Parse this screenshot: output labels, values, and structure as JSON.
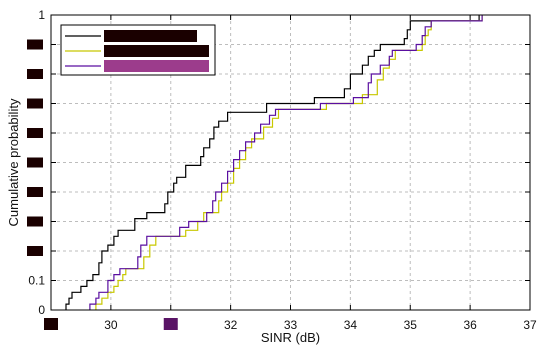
{
  "chart_data": {
    "type": "line",
    "step": true,
    "xlabel": "SINR (dB)",
    "ylabel": "Cumulative probability",
    "xlim": [
      29,
      37
    ],
    "ylim": [
      0,
      1
    ],
    "grid": true,
    "legend_position": "top-left",
    "x_ticks": [
      {
        "value": 29,
        "label": "",
        "redacted_color": "#1a0000"
      },
      {
        "value": 30,
        "label": "30"
      },
      {
        "value": 31,
        "label": "",
        "redacted_color": "#5a1466"
      },
      {
        "value": 32,
        "label": "32"
      },
      {
        "value": 33,
        "label": "33"
      },
      {
        "value": 34,
        "label": "34"
      },
      {
        "value": 35,
        "label": "35"
      },
      {
        "value": 36,
        "label": "36"
      },
      {
        "value": 37,
        "label": "37"
      }
    ],
    "y_ticks": [
      {
        "value": 0,
        "label": "0"
      },
      {
        "value": 0.1,
        "label": "0.1"
      },
      {
        "value": 0.2,
        "label": "",
        "redacted_color": "#1a0000"
      },
      {
        "value": 0.3,
        "label": "",
        "redacted_color": "#1a0000"
      },
      {
        "value": 0.4,
        "label": "",
        "redacted_color": "#1a0000"
      },
      {
        "value": 0.5,
        "label": "",
        "redacted_color": "#1a0000"
      },
      {
        "value": 0.6,
        "label": "",
        "redacted_color": "#1a0000"
      },
      {
        "value": 0.7,
        "label": "",
        "redacted_color": "#1a0000"
      },
      {
        "value": 0.8,
        "label": "",
        "redacted_color": "#1a0000"
      },
      {
        "value": 0.9,
        "label": "",
        "redacted_color": "#1a0000"
      },
      {
        "value": 1,
        "label": "1"
      }
    ],
    "series": [
      {
        "color": "#000000",
        "legend_label_redacted": true,
        "legend_fill": "#1a0000",
        "points": [
          [
            29.25,
            0.0
          ],
          [
            29.25,
            0.02
          ],
          [
            29.3,
            0.02
          ],
          [
            29.3,
            0.04
          ],
          [
            29.35,
            0.04
          ],
          [
            29.35,
            0.06
          ],
          [
            29.5,
            0.06
          ],
          [
            29.5,
            0.08
          ],
          [
            29.6,
            0.08
          ],
          [
            29.6,
            0.1
          ],
          [
            29.7,
            0.1
          ],
          [
            29.7,
            0.12
          ],
          [
            29.8,
            0.12
          ],
          [
            29.8,
            0.16
          ],
          [
            29.85,
            0.16
          ],
          [
            29.85,
            0.2
          ],
          [
            29.95,
            0.2
          ],
          [
            29.95,
            0.22
          ],
          [
            30.05,
            0.22
          ],
          [
            30.05,
            0.25
          ],
          [
            30.12,
            0.25
          ],
          [
            30.12,
            0.27
          ],
          [
            30.4,
            0.27
          ],
          [
            30.4,
            0.31
          ],
          [
            30.6,
            0.31
          ],
          [
            30.6,
            0.33
          ],
          [
            30.9,
            0.33
          ],
          [
            30.9,
            0.36
          ],
          [
            30.95,
            0.36
          ],
          [
            30.95,
            0.4
          ],
          [
            31.05,
            0.4
          ],
          [
            31.05,
            0.43
          ],
          [
            31.1,
            0.43
          ],
          [
            31.1,
            0.45
          ],
          [
            31.25,
            0.45
          ],
          [
            31.25,
            0.49
          ],
          [
            31.5,
            0.49
          ],
          [
            31.5,
            0.52
          ],
          [
            31.55,
            0.52
          ],
          [
            31.55,
            0.55
          ],
          [
            31.65,
            0.55
          ],
          [
            31.65,
            0.58
          ],
          [
            31.72,
            0.58
          ],
          [
            31.72,
            0.62
          ],
          [
            31.8,
            0.62
          ],
          [
            31.8,
            0.64
          ],
          [
            31.95,
            0.64
          ],
          [
            31.95,
            0.67
          ],
          [
            32.6,
            0.67
          ],
          [
            32.6,
            0.7
          ],
          [
            33.4,
            0.7
          ],
          [
            33.4,
            0.72
          ],
          [
            33.9,
            0.72
          ],
          [
            33.9,
            0.75
          ],
          [
            34.0,
            0.75
          ],
          [
            34.0,
            0.8
          ],
          [
            34.2,
            0.8
          ],
          [
            34.2,
            0.83
          ],
          [
            34.3,
            0.83
          ],
          [
            34.3,
            0.86
          ],
          [
            34.4,
            0.86
          ],
          [
            34.4,
            0.88
          ],
          [
            34.5,
            0.88
          ],
          [
            34.5,
            0.9
          ],
          [
            34.9,
            0.9
          ],
          [
            34.9,
            0.92
          ],
          [
            34.95,
            0.92
          ],
          [
            34.95,
            0.95
          ],
          [
            35.0,
            0.95
          ],
          [
            35.0,
            0.98
          ],
          [
            36.15,
            0.98
          ],
          [
            36.15,
            1.0
          ]
        ]
      },
      {
        "color": "#c8c800",
        "legend_label_redacted": true,
        "legend_fill": "#1a0000",
        "points": [
          [
            29.75,
            0.0
          ],
          [
            29.75,
            0.02
          ],
          [
            29.85,
            0.02
          ],
          [
            29.85,
            0.04
          ],
          [
            29.95,
            0.04
          ],
          [
            29.95,
            0.06
          ],
          [
            30.05,
            0.06
          ],
          [
            30.05,
            0.08
          ],
          [
            30.12,
            0.08
          ],
          [
            30.12,
            0.1
          ],
          [
            30.2,
            0.1
          ],
          [
            30.2,
            0.12
          ],
          [
            30.25,
            0.12
          ],
          [
            30.25,
            0.14
          ],
          [
            30.55,
            0.14
          ],
          [
            30.55,
            0.18
          ],
          [
            30.65,
            0.18
          ],
          [
            30.65,
            0.22
          ],
          [
            30.75,
            0.22
          ],
          [
            30.75,
            0.25
          ],
          [
            31.25,
            0.25
          ],
          [
            31.25,
            0.27
          ],
          [
            31.45,
            0.27
          ],
          [
            31.45,
            0.3
          ],
          [
            31.55,
            0.3
          ],
          [
            31.55,
            0.33
          ],
          [
            31.8,
            0.33
          ],
          [
            31.8,
            0.37
          ],
          [
            31.85,
            0.37
          ],
          [
            31.85,
            0.4
          ],
          [
            31.95,
            0.4
          ],
          [
            31.95,
            0.43
          ],
          [
            32.05,
            0.43
          ],
          [
            32.05,
            0.48
          ],
          [
            32.15,
            0.48
          ],
          [
            32.15,
            0.51
          ],
          [
            32.25,
            0.51
          ],
          [
            32.25,
            0.55
          ],
          [
            32.35,
            0.55
          ],
          [
            32.35,
            0.58
          ],
          [
            32.55,
            0.58
          ],
          [
            32.55,
            0.62
          ],
          [
            32.7,
            0.62
          ],
          [
            32.7,
            0.65
          ],
          [
            32.8,
            0.65
          ],
          [
            32.8,
            0.68
          ],
          [
            33.6,
            0.68
          ],
          [
            33.6,
            0.7
          ],
          [
            34.2,
            0.7
          ],
          [
            34.2,
            0.73
          ],
          [
            34.45,
            0.73
          ],
          [
            34.45,
            0.78
          ],
          [
            34.55,
            0.78
          ],
          [
            34.55,
            0.82
          ],
          [
            34.65,
            0.82
          ],
          [
            34.65,
            0.85
          ],
          [
            34.75,
            0.85
          ],
          [
            34.75,
            0.88
          ],
          [
            35.2,
            0.88
          ],
          [
            35.2,
            0.9
          ],
          [
            35.25,
            0.9
          ],
          [
            35.25,
            0.93
          ],
          [
            35.3,
            0.93
          ],
          [
            35.3,
            0.95
          ],
          [
            35.35,
            0.95
          ],
          [
            35.35,
            0.98
          ],
          [
            36.2,
            0.98
          ],
          [
            36.2,
            1.0
          ]
        ]
      },
      {
        "color": "#5a0fa0",
        "legend_label_redacted": true,
        "legend_fill": "#9c3c8c",
        "points": [
          [
            29.65,
            0.0
          ],
          [
            29.65,
            0.02
          ],
          [
            29.75,
            0.02
          ],
          [
            29.75,
            0.04
          ],
          [
            29.8,
            0.04
          ],
          [
            29.8,
            0.06
          ],
          [
            29.95,
            0.06
          ],
          [
            29.95,
            0.1
          ],
          [
            30.05,
            0.1
          ],
          [
            30.05,
            0.12
          ],
          [
            30.15,
            0.12
          ],
          [
            30.15,
            0.14
          ],
          [
            30.45,
            0.14
          ],
          [
            30.45,
            0.18
          ],
          [
            30.5,
            0.18
          ],
          [
            30.5,
            0.22
          ],
          [
            30.6,
            0.22
          ],
          [
            30.6,
            0.25
          ],
          [
            31.15,
            0.25
          ],
          [
            31.15,
            0.28
          ],
          [
            31.3,
            0.28
          ],
          [
            31.3,
            0.3
          ],
          [
            31.6,
            0.3
          ],
          [
            31.6,
            0.33
          ],
          [
            31.7,
            0.33
          ],
          [
            31.7,
            0.37
          ],
          [
            31.75,
            0.37
          ],
          [
            31.75,
            0.4
          ],
          [
            31.85,
            0.4
          ],
          [
            31.85,
            0.43
          ],
          [
            31.95,
            0.43
          ],
          [
            31.95,
            0.47
          ],
          [
            32.05,
            0.47
          ],
          [
            32.05,
            0.51
          ],
          [
            32.15,
            0.51
          ],
          [
            32.15,
            0.54
          ],
          [
            32.25,
            0.54
          ],
          [
            32.25,
            0.57
          ],
          [
            32.4,
            0.57
          ],
          [
            32.4,
            0.6
          ],
          [
            32.5,
            0.6
          ],
          [
            32.5,
            0.63
          ],
          [
            32.65,
            0.63
          ],
          [
            32.65,
            0.66
          ],
          [
            32.75,
            0.66
          ],
          [
            32.75,
            0.68
          ],
          [
            33.5,
            0.68
          ],
          [
            33.5,
            0.7
          ],
          [
            34.05,
            0.7
          ],
          [
            34.05,
            0.72
          ],
          [
            34.3,
            0.72
          ],
          [
            34.3,
            0.77
          ],
          [
            34.35,
            0.77
          ],
          [
            34.35,
            0.8
          ],
          [
            34.5,
            0.8
          ],
          [
            34.5,
            0.83
          ],
          [
            34.65,
            0.83
          ],
          [
            34.65,
            0.86
          ],
          [
            34.7,
            0.86
          ],
          [
            34.7,
            0.88
          ],
          [
            35.1,
            0.88
          ],
          [
            35.1,
            0.9
          ],
          [
            35.2,
            0.9
          ],
          [
            35.2,
            0.93
          ],
          [
            35.25,
            0.93
          ],
          [
            35.25,
            0.96
          ],
          [
            35.35,
            0.96
          ],
          [
            35.35,
            0.98
          ],
          [
            36.2,
            0.98
          ],
          [
            36.2,
            1.0
          ]
        ]
      }
    ]
  }
}
